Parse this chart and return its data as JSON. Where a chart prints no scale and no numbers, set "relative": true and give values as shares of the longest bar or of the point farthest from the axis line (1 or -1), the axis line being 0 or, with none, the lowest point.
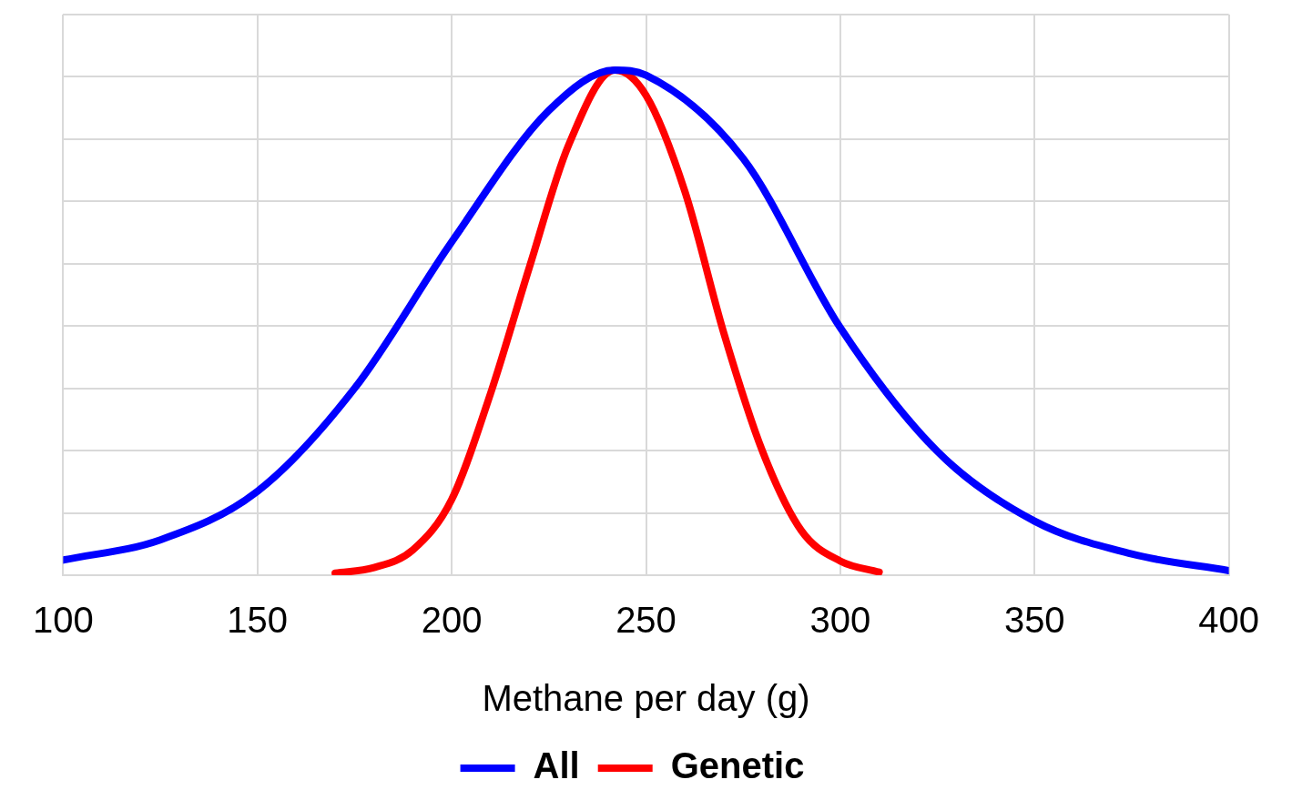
{
  "chart_data": {
    "type": "line",
    "relative": true,
    "xlabel": "Methane per day (g)",
    "xlim": [
      100,
      400
    ],
    "xticks": [
      100,
      150,
      200,
      250,
      300,
      350,
      400
    ],
    "grid": true,
    "legend": "bottom",
    "marker": "none",
    "line_style": "solid",
    "series": [
      {
        "name": "All",
        "color": "#0000ff",
        "x": [
          100,
          125,
          150,
          175,
          200,
          225,
          242,
          250,
          275,
          300,
          325,
          350,
          375,
          400
        ],
        "values": [
          0.03,
          0.07,
          0.166,
          0.37,
          0.66,
          0.92,
          1,
          0.99,
          0.825,
          0.49,
          0.245,
          0.107,
          0.042,
          0.009
        ]
      },
      {
        "name": "Genetic",
        "color": "#ff0000",
        "x": [
          170,
          180,
          190,
          200,
          210,
          220,
          230,
          242,
          250,
          260,
          270,
          280,
          290,
          300,
          310
        ],
        "values": [
          0.004,
          0.015,
          0.05,
          0.15,
          0.36,
          0.61,
          0.85,
          1,
          0.95,
          0.76,
          0.48,
          0.245,
          0.088,
          0.028,
          0.006
        ]
      }
    ]
  }
}
